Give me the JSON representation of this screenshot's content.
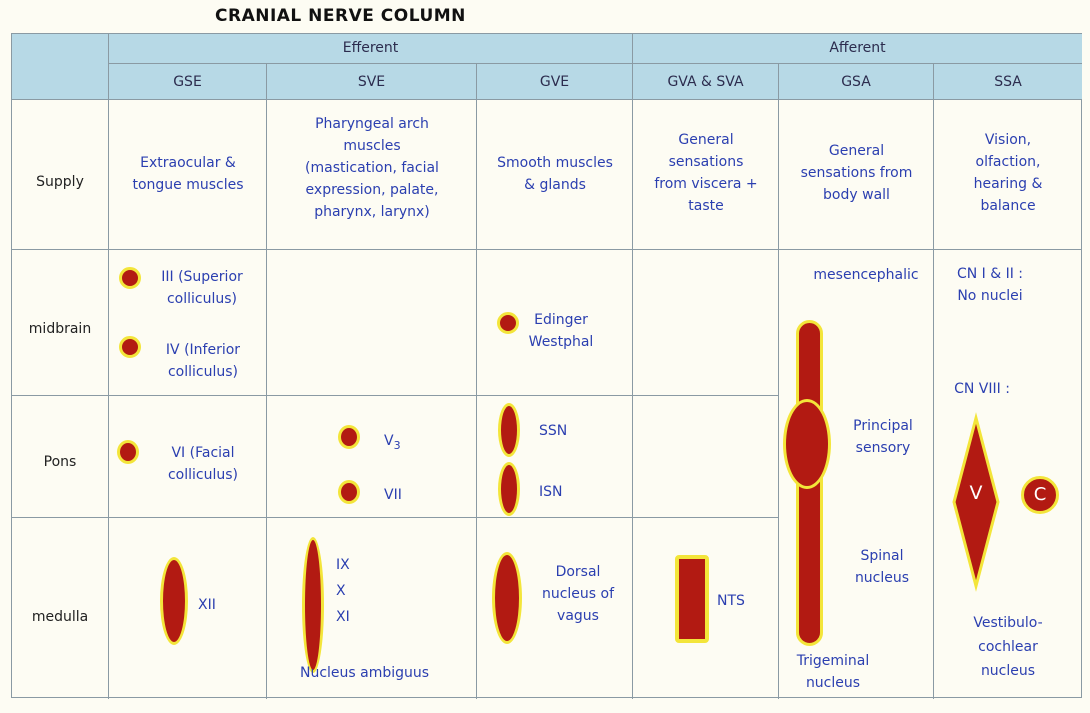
{
  "title": "CRANIAL NERVE COLUMN",
  "header": {
    "efferent": "Efferent",
    "afferent": "Afferent",
    "columns": [
      "GSE",
      "SVE",
      "GVE",
      "GVA & SVA",
      "GSA",
      "SSA"
    ]
  },
  "rows": [
    "Supply",
    "midbrain",
    "Pons",
    "medulla"
  ],
  "supply": {
    "gse": [
      "Extraocular &",
      "tongue muscles"
    ],
    "sve": [
      "Pharyngeal arch",
      "muscles",
      "(mastication, facial",
      "expression, palate,",
      "pharynx, larynx)"
    ],
    "gve": [
      "Smooth muscles",
      "& glands"
    ],
    "gva": [
      "General",
      "sensations",
      "from viscera +",
      "taste"
    ],
    "gsa": [
      "General",
      "sensations from",
      "body wall"
    ],
    "ssa": [
      "Vision,",
      "olfaction,",
      "hearing &",
      "balance"
    ]
  },
  "midbrain": {
    "gse_1": [
      "III (Superior",
      "colliculus)"
    ],
    "gse_2": [
      "IV (Inferior",
      "colliculus)"
    ],
    "gve": [
      "Edinger",
      "Westphal"
    ],
    "gsa": "mesencephalic",
    "ssa_1": [
      "CN I & II :",
      "No nuclei"
    ],
    "ssa_2": "CN VIII :"
  },
  "pons": {
    "gse": [
      "VI (Facial",
      "colliculus)"
    ],
    "sve_1": "V",
    "sve_1_sub": "3",
    "sve_2": "VII",
    "gve_1": "SSN",
    "gve_2": "ISN",
    "gsa": [
      "Principal",
      "sensory"
    ],
    "ssa_v": "V",
    "ssa_c": "C"
  },
  "medulla": {
    "gse": "XII",
    "sve": [
      "IX",
      "X",
      "XI"
    ],
    "sve_bottom": "Nucleus ambiguus",
    "gve": [
      "Dorsal",
      "nucleus of",
      "vagus"
    ],
    "gva": "NTS",
    "gsa_1": [
      "Spinal",
      "nucleus"
    ],
    "gsa_2": [
      "Trigeminal",
      "nucleus"
    ],
    "ssa": [
      "Vestibulo-",
      "cochlear",
      "nucleus"
    ]
  },
  "colors": {
    "header_bg": "#b7d9e6",
    "nucleus": "#b21a12",
    "outline": "#f3e53a",
    "text_blue": "#2b3fb0"
  }
}
